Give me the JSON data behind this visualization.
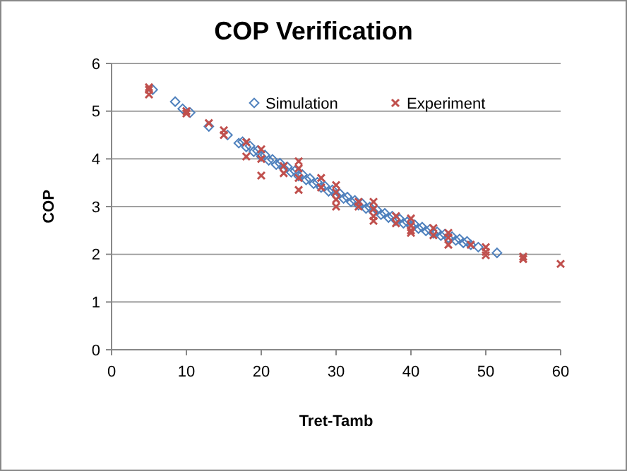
{
  "chart_data": {
    "type": "scatter",
    "title": "COP Verification",
    "xlabel": "Tret-Tamb",
    "ylabel": "COP",
    "xlim": [
      0,
      60
    ],
    "xticks": [
      0,
      10,
      20,
      30,
      40,
      50,
      60
    ],
    "ylim": [
      0,
      6
    ],
    "yticks": [
      0,
      1,
      2,
      3,
      4,
      5,
      6
    ],
    "grid": "y",
    "legend": "top",
    "series": [
      {
        "name": "Simulation",
        "color": "#4f81bd",
        "marker": "diamond",
        "x": [
          5.5,
          8.5,
          9.5,
          10.5,
          13,
          15.5,
          17,
          18,
          19,
          20,
          21,
          22,
          23,
          24,
          25,
          26,
          27,
          28,
          29,
          30,
          31,
          32,
          33,
          34,
          35,
          36,
          37,
          38,
          39,
          40,
          41,
          42,
          43,
          44,
          45,
          46,
          47,
          48,
          17.5,
          18.5,
          19.5,
          20.5,
          21.5,
          22.5,
          23.5,
          24.5,
          25.5,
          26.5,
          27.5,
          28.5,
          29.5,
          30.5,
          31.5,
          32.5,
          33.5,
          34.5,
          35.5,
          36.5,
          37.5,
          38.5,
          39.5,
          40.5,
          41.5,
          42.5,
          43.5,
          44.5,
          45.5,
          46.5,
          47.5,
          49,
          51.5
        ],
        "values": [
          5.45,
          5.2,
          5.05,
          4.97,
          4.68,
          4.5,
          4.33,
          4.25,
          4.15,
          4.05,
          3.97,
          3.88,
          3.8,
          3.72,
          3.64,
          3.56,
          3.48,
          3.4,
          3.32,
          3.24,
          3.17,
          3.1,
          3.03,
          2.96,
          2.89,
          2.83,
          2.77,
          2.71,
          2.65,
          2.6,
          2.54,
          2.49,
          2.44,
          2.39,
          2.34,
          2.29,
          2.24,
          2.2,
          4.36,
          4.27,
          4.17,
          4.08,
          3.99,
          3.91,
          3.83,
          3.75,
          3.67,
          3.59,
          3.51,
          3.43,
          3.35,
          3.27,
          3.2,
          3.13,
          3.06,
          2.99,
          2.92,
          2.86,
          2.8,
          2.74,
          2.68,
          2.62,
          2.57,
          2.52,
          2.47,
          2.42,
          2.37,
          2.32,
          2.27,
          2.15,
          2.03
        ]
      },
      {
        "name": "Experiment",
        "color": "#c0504d",
        "marker": "cross",
        "x": [
          5,
          5,
          5,
          10,
          10,
          13,
          15,
          15,
          18,
          18,
          20,
          20,
          20,
          23,
          23,
          25,
          25,
          25,
          25,
          28,
          28,
          30,
          30,
          30,
          30,
          33,
          33,
          35,
          35,
          35,
          35,
          38,
          38,
          40,
          40,
          40,
          40,
          43,
          43,
          45,
          45,
          45,
          48,
          50,
          50,
          50,
          55,
          55,
          60
        ],
        "values": [
          5.35,
          5.45,
          5.5,
          4.95,
          5.0,
          4.75,
          4.5,
          4.6,
          4.35,
          4.05,
          4.2,
          4.0,
          3.65,
          3.85,
          3.7,
          3.95,
          3.8,
          3.6,
          3.35,
          3.6,
          3.4,
          3.45,
          3.3,
          3.15,
          3.0,
          3.1,
          3.0,
          3.1,
          2.95,
          2.8,
          2.7,
          2.8,
          2.65,
          2.75,
          2.6,
          2.5,
          2.45,
          2.55,
          2.4,
          2.45,
          2.35,
          2.2,
          2.2,
          2.15,
          2.05,
          1.98,
          1.95,
          1.9,
          1.8
        ]
      }
    ]
  }
}
